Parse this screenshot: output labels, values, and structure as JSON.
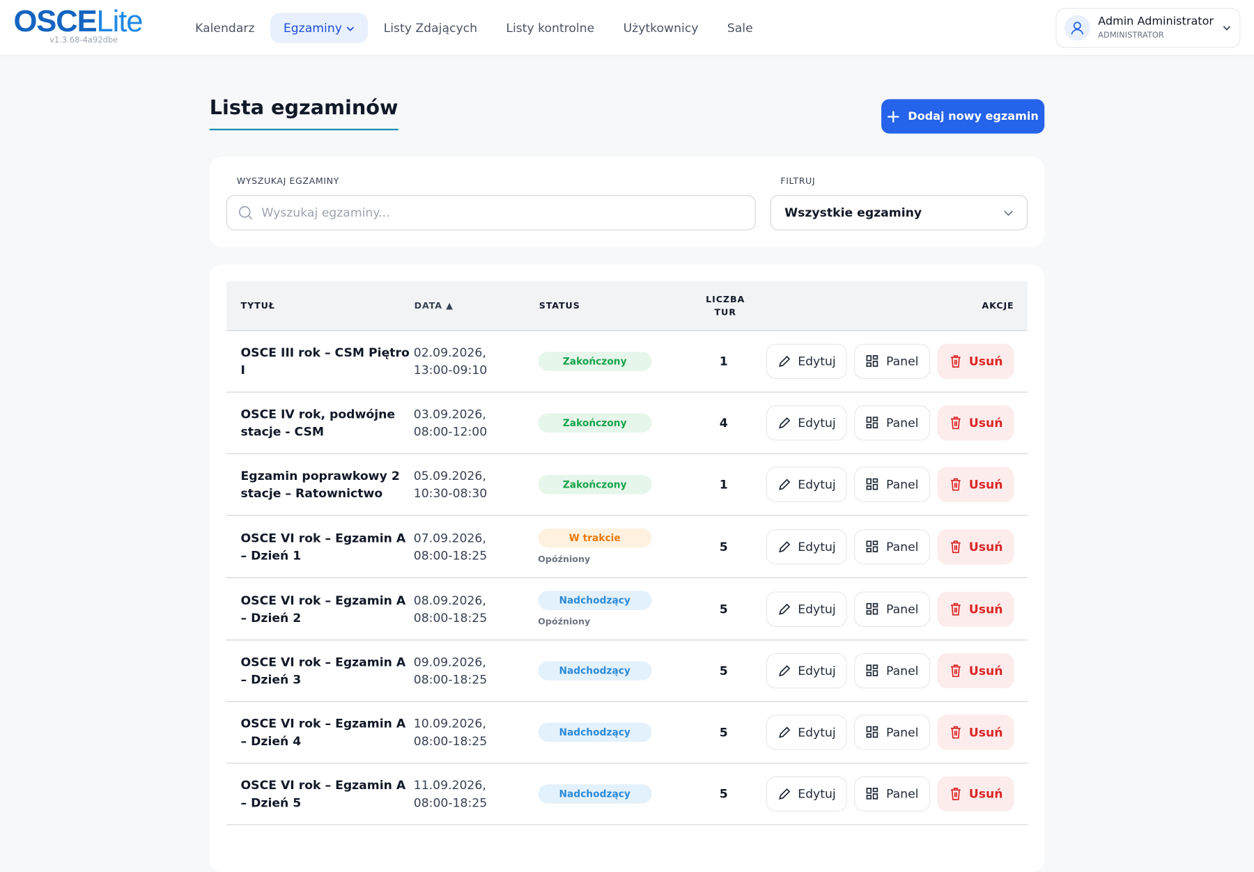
{
  "header": {
    "logo_a": "OSCE",
    "logo_b": "Lite",
    "version": "v1.3.68-4a92dbe",
    "nav": [
      "Kalendarz",
      "Egzaminy",
      "Listy Zdających",
      "Listy kontrolne",
      "Użytkownicy",
      "Sale"
    ],
    "active_nav": 1,
    "user_name": "Admin Administrator",
    "user_role": "ADMINISTRATOR"
  },
  "page": {
    "title": "Lista egzaminów",
    "add_button": "Dodaj nowy egzamin"
  },
  "filters": {
    "search_label": "WYSZUKAJ EGZAMINY",
    "search_placeholder": "Wyszukaj egzaminy...",
    "filter_label": "FILTRUJ",
    "filter_value": "Wszystkie egzaminy"
  },
  "table": {
    "headers": [
      "TYTUŁ",
      "DATA ▲",
      "STATUS",
      "LICZBA TUR",
      "AKCJE"
    ],
    "actions": [
      "Edytuj",
      "Panel",
      "Usuń"
    ],
    "rows": [
      {
        "title": "OSCE III rok – CSM Piętro I",
        "date": "02.09.2026,",
        "time": "13:00-09:10",
        "status": "Zakończony",
        "status_color": "#16a34a",
        "status_bg": "#e6f6ea",
        "rounds": "1"
      },
      {
        "title": "OSCE IV rok, podwójne stacje - CSM",
        "date": "03.09.2026,",
        "time": "08:00-12:00",
        "status": "Zakończony",
        "status_color": "#16a34a",
        "status_bg": "#e6f6ea",
        "rounds": "4"
      },
      {
        "title": "Egzamin poprawkowy 2 stacje – Ratownictwo",
        "date": "05.09.2026,",
        "time": "10:30-08:30",
        "status": "Zakończony",
        "status_color": "#16a34a",
        "status_bg": "#e6f6ea",
        "rounds": "1"
      },
      {
        "title": "OSCE VI rok – Egzamin A – Dzień 1",
        "date": "07.09.2026,",
        "time": "08:00-18:25",
        "status": "W trakcie",
        "status_color": "#ea7a0c",
        "status_bg": "#fff1e0",
        "substatus": "Opóźniony",
        "rounds": "5"
      },
      {
        "title": "OSCE VI rok – Egzamin A – Dzień 2",
        "date": "08.09.2026,",
        "time": "08:00-18:25",
        "status": "Nadchodzący",
        "status_color": "#2b8ad8",
        "status_bg": "#e3f1fc",
        "substatus": "Opóźniony",
        "rounds": "5"
      },
      {
        "title": "OSCE VI rok – Egzamin A – Dzień 3",
        "date": "09.09.2026,",
        "time": "08:00-18:25",
        "status": "Nadchodzący",
        "status_color": "#2b8ad8",
        "status_bg": "#e3f1fc",
        "rounds": "5"
      },
      {
        "title": "OSCE VI rok – Egzamin A – Dzień 4",
        "date": "10.09.2026,",
        "time": "08:00-18:25",
        "status": "Nadchodzący",
        "status_color": "#2b8ad8",
        "status_bg": "#e3f1fc",
        "rounds": "5"
      },
      {
        "title": "OSCE VI rok – Egzamin A – Dzień 5",
        "date": "11.09.2026,",
        "time": "08:00-18:25",
        "status": "Nadchodzący",
        "status_color": "#2b8ad8",
        "status_bg": "#e3f1fc",
        "rounds": "5"
      }
    ]
  }
}
